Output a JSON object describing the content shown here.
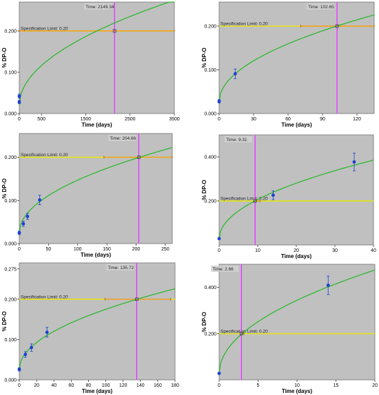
{
  "colors": {
    "plot_bg": "#c0c0c0",
    "fit_line": "#2eb82e",
    "spec_line": "#e8e800",
    "interval_line": "#f0a020",
    "time_line": "#cc33ee",
    "data_point": "#1a3fd0",
    "error_bar": "#1a3fd0",
    "label_box": "#d0d0d0"
  },
  "chart_data": [
    {
      "type": "scatter",
      "id": "p1",
      "ylabel": "% DP-O",
      "xlabel": "Time (days)",
      "xlim": [
        0,
        3500
      ],
      "ylim": [
        0,
        0.27
      ],
      "xticks": [
        "0",
        "500",
        "1500",
        "2500",
        "3500"
      ],
      "xtick_values": [
        0,
        500,
        1500,
        2500,
        3500
      ],
      "yticks": [
        "0.000",
        "0.100",
        "0.200"
      ],
      "ytick_values": [
        0,
        0.1,
        0.2
      ],
      "spec_label": "Specification Limit: 0.20",
      "spec_value": 0.2,
      "spec_interval": [
        0,
        3500
      ],
      "time_label": "Time: 2149.34",
      "time_value": 2149.34,
      "fit": {
        "k": 0.0043,
        "a": 0.02,
        "pow": 0.5
      },
      "points": [
        {
          "x": 0,
          "y": 0.028,
          "err": 0.004
        },
        {
          "x": 0,
          "y": 0.042,
          "err": 0.005
        }
      ],
      "grid": false
    },
    {
      "type": "scatter",
      "id": "p2",
      "ylabel": "% DP-O",
      "xlabel": "Time (days)",
      "xlim": [
        0,
        135
      ],
      "ylim": [
        0,
        0.255
      ],
      "xticks": [
        "0",
        "30",
        "60",
        "90",
        "120"
      ],
      "xtick_values": [
        0,
        30,
        60,
        90,
        120
      ],
      "yticks": [
        "0.000",
        "0.100",
        "0.200"
      ],
      "ytick_values": [
        0,
        0.1,
        0.2
      ],
      "spec_label": "Specification Limit: 0.20",
      "spec_value": 0.2,
      "spec_interval": [
        71,
        135
      ],
      "time_label": "Time: 102.65",
      "time_value": 102.65,
      "fit": {
        "k": 0.0171,
        "a": 0.027,
        "pow": 0.5
      },
      "points": [
        {
          "x": 0,
          "y": 0.028,
          "err": 0.004
        },
        {
          "x": 14,
          "y": 0.091,
          "err": 0.011
        }
      ],
      "grid": false
    },
    {
      "type": "scatter",
      "id": "p3",
      "ylabel": "% DP-O",
      "xlabel": "Time (days)",
      "xlim": [
        0,
        262
      ],
      "ylim": [
        0,
        0.255
      ],
      "xticks": [
        "0",
        "50",
        "100",
        "150",
        "200",
        "250"
      ],
      "xtick_values": [
        0,
        50,
        100,
        150,
        200,
        250
      ],
      "yticks": [
        "0.000",
        "0.100",
        "0.200"
      ],
      "ytick_values": [
        0,
        0.1,
        0.2
      ],
      "spec_label": "Specification Limit: 0.20",
      "spec_value": 0.2,
      "spec_interval": [
        145,
        262
      ],
      "time_label": "Time: 204.66",
      "time_value": 204.66,
      "fit": {
        "k": 0.0122,
        "a": 0.025,
        "pow": 0.5
      },
      "points": [
        {
          "x": 0,
          "y": 0.025,
          "err": 0.004
        },
        {
          "x": 7,
          "y": 0.046,
          "err": 0.006
        },
        {
          "x": 14,
          "y": 0.063,
          "err": 0.007
        },
        {
          "x": 35,
          "y": 0.101,
          "err": 0.011
        }
      ],
      "grid": false
    },
    {
      "type": "scatter",
      "id": "p4",
      "ylabel": "% DP-O",
      "xlabel": "Time (days)",
      "xlim": [
        0,
        40
      ],
      "ylim": [
        0,
        0.5
      ],
      "xticks": [
        "0",
        "10",
        "20",
        "30",
        "40"
      ],
      "xtick_values": [
        0,
        10,
        20,
        30,
        40
      ],
      "yticks": [
        "0.200",
        "0.400"
      ],
      "ytick_values": [
        0.2,
        0.4
      ],
      "spec_label": "Specification Limit: 0.20",
      "spec_value": 0.2,
      "spec_interval": [
        9.31,
        10.6
      ],
      "time_label": "Time: 9.31",
      "time_value": 9.31,
      "fit": {
        "k": 0.0565,
        "a": 0.028,
        "pow": 0.5
      },
      "points": [
        {
          "x": 0,
          "y": 0.029,
          "err": 0.004
        },
        {
          "x": 14,
          "y": 0.226,
          "err": 0.02
        },
        {
          "x": 35,
          "y": 0.377,
          "err": 0.04
        }
      ],
      "grid": false
    },
    {
      "type": "scatter",
      "id": "p5",
      "ylabel": "% DP-O",
      "xlabel": "Time (days)",
      "xlim": [
        0,
        180
      ],
      "ylim": [
        0,
        0.29
      ],
      "xticks": [
        "0",
        "20",
        "40",
        "60",
        "80",
        "100",
        "120",
        "140",
        "160",
        "180"
      ],
      "xtick_values": [
        0,
        20,
        40,
        60,
        80,
        100,
        120,
        140,
        160,
        180
      ],
      "yticks": [
        "0.000",
        "0.100",
        "0.200",
        "0.275"
      ],
      "ytick_values": [
        0,
        0.1,
        0.2,
        0.275
      ],
      "spec_label": "Specification Limit: 0.20",
      "spec_value": 0.2,
      "spec_interval": [
        99,
        175
      ],
      "time_label": "Time: 135.72",
      "time_value": 135.72,
      "fit": {
        "k": 0.0149,
        "a": 0.026,
        "pow": 0.5
      },
      "points": [
        {
          "x": 0,
          "y": 0.026,
          "err": 0.004
        },
        {
          "x": 7,
          "y": 0.063,
          "err": 0.007
        },
        {
          "x": 14,
          "y": 0.08,
          "err": 0.009
        },
        {
          "x": 32,
          "y": 0.118,
          "err": 0.012
        }
      ],
      "grid": false
    },
    {
      "type": "scatter",
      "id": "p6",
      "ylabel": "% DP-O",
      "xlabel": "Time (days)",
      "xlim": [
        0,
        20
      ],
      "ylim": [
        0,
        0.5
      ],
      "xticks": [
        "0",
        "5",
        "10",
        "15",
        "20"
      ],
      "xtick_values": [
        0,
        5,
        10,
        15,
        20
      ],
      "yticks": [
        "0.200",
        "0.400"
      ],
      "ytick_values": [
        0.2,
        0.4
      ],
      "spec_label": "Specification Limit: 0.20",
      "spec_value": 0.2,
      "spec_interval": [
        2.86,
        3.2
      ],
      "time_label": "Time: 2.86",
      "time_value": 2.86,
      "fit": {
        "k": 0.1,
        "a": 0.028,
        "pow": 0.5
      },
      "points": [
        {
          "x": 0,
          "y": 0.028,
          "err": 0.004
        },
        {
          "x": 14,
          "y": 0.409,
          "err": 0.04
        }
      ],
      "grid": false
    }
  ]
}
